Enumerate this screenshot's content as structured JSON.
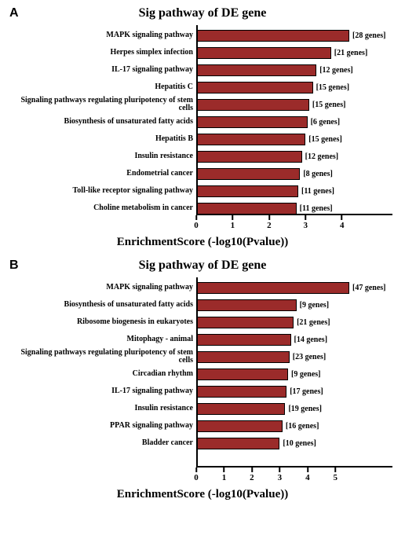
{
  "panels": [
    {
      "id": "A",
      "title": "Sig pathway of DE gene",
      "xlabel": "EnrichmentScore (-log10(Pvalue))",
      "xmax": 4.2,
      "xticks": [
        0,
        1,
        2,
        3,
        4
      ],
      "bar_color": "#9b2b2a",
      "bar_border": "#000000",
      "title_fontsize": 16,
      "label_fontsize": 10,
      "xlabel_fontsize": 15,
      "background": "#ffffff",
      "bars": [
        {
          "label": "MAPK signaling pathway",
          "value": 4.2,
          "genes": "[28 genes]"
        },
        {
          "label": "Herpes simplex infection",
          "value": 3.7,
          "genes": "[21 genes]"
        },
        {
          "label": "IL-17 signaling pathway",
          "value": 3.3,
          "genes": "[12 genes]"
        },
        {
          "label": "Hepatitis C",
          "value": 3.2,
          "genes": "[15 genes]"
        },
        {
          "label": "Signaling pathways regulating pluripotency of stem cells",
          "value": 3.1,
          "genes": "[15 genes]"
        },
        {
          "label": "Biosynthesis of unsaturated fatty acids",
          "value": 3.05,
          "genes": "[6 genes]"
        },
        {
          "label": "Hepatitis B",
          "value": 3.0,
          "genes": "[15 genes]"
        },
        {
          "label": "Insulin resistance",
          "value": 2.9,
          "genes": "[12 genes]"
        },
        {
          "label": "Endometrial cancer",
          "value": 2.85,
          "genes": "[8 genes]"
        },
        {
          "label": "Toll-like receptor signaling pathway",
          "value": 2.8,
          "genes": "[11 genes]"
        },
        {
          "label": "Choline metabolism in cancer",
          "value": 2.75,
          "genes": "[11 genes]"
        }
      ]
    },
    {
      "id": "B",
      "title": "Sig pathway of DE gene",
      "xlabel": "EnrichmentScore (-log10(Pvalue))",
      "xmax": 5.5,
      "xticks": [
        0,
        1,
        2,
        3,
        4,
        5
      ],
      "bar_color": "#9b2b2a",
      "bar_border": "#000000",
      "title_fontsize": 16,
      "label_fontsize": 10,
      "xlabel_fontsize": 15,
      "background": "#ffffff",
      "bars": [
        {
          "label": "MAPK signaling pathway",
          "value": 5.5,
          "genes": "[47 genes]"
        },
        {
          "label": "Biosynthesis of unsaturated fatty acids",
          "value": 3.6,
          "genes": "[9 genes]"
        },
        {
          "label": "Ribosome biogenesis in eukaryotes",
          "value": 3.5,
          "genes": "[21 genes]"
        },
        {
          "label": "Mitophagy - animal",
          "value": 3.4,
          "genes": "[14 genes]"
        },
        {
          "label": "Signaling pathways regulating pluripotency of stem cells",
          "value": 3.35,
          "genes": "[23 genes]"
        },
        {
          "label": "Circadian rhythm",
          "value": 3.3,
          "genes": "[9 genes]"
        },
        {
          "label": "IL-17 signaling pathway",
          "value": 3.25,
          "genes": "[17 genes]"
        },
        {
          "label": "Insulin resistance",
          "value": 3.2,
          "genes": "[19 genes]"
        },
        {
          "label": "PPAR signaling pathway",
          "value": 3.1,
          "genes": "[16 genes]"
        },
        {
          "label": "Bladder cancer",
          "value": 3.0,
          "genes": "[10 genes]"
        }
      ]
    }
  ]
}
